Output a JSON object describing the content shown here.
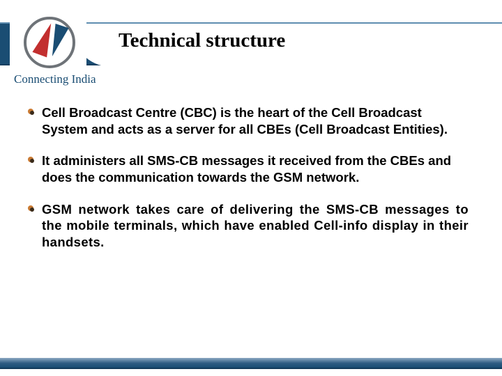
{
  "colors": {
    "brand_blue": "#1a4d73",
    "brand_red": "#c22f2f",
    "ring_gray": "#6e7378",
    "bullet_outer": "#c97a33",
    "bullet_inner": "#3a2b1a",
    "background": "#ffffff",
    "text": "#000000"
  },
  "typography": {
    "title_family": "Times New Roman",
    "title_size_pt": 22,
    "title_weight": "bold",
    "body_family": "Arial",
    "body_size_pt": 14,
    "body_weight": "bold"
  },
  "logo": {
    "tagline": "Connecting India"
  },
  "title": "Technical  structure",
  "bullets": [
    {
      "text": "Cell Broadcast Centre (CBC) is the heart of the Cell Broadcast System and acts as a server for all CBEs (Cell Broadcast Entities).",
      "justify": false
    },
    {
      "text": "It administers all SMS-CB messages it received from the CBEs and does the communication towards the GSM network.",
      "justify": false
    },
    {
      "text": "GSM network takes care of delivering the SMS-CB messages to the mobile terminals, which have enabled Cell-info display in their handsets.",
      "justify": true
    }
  ]
}
